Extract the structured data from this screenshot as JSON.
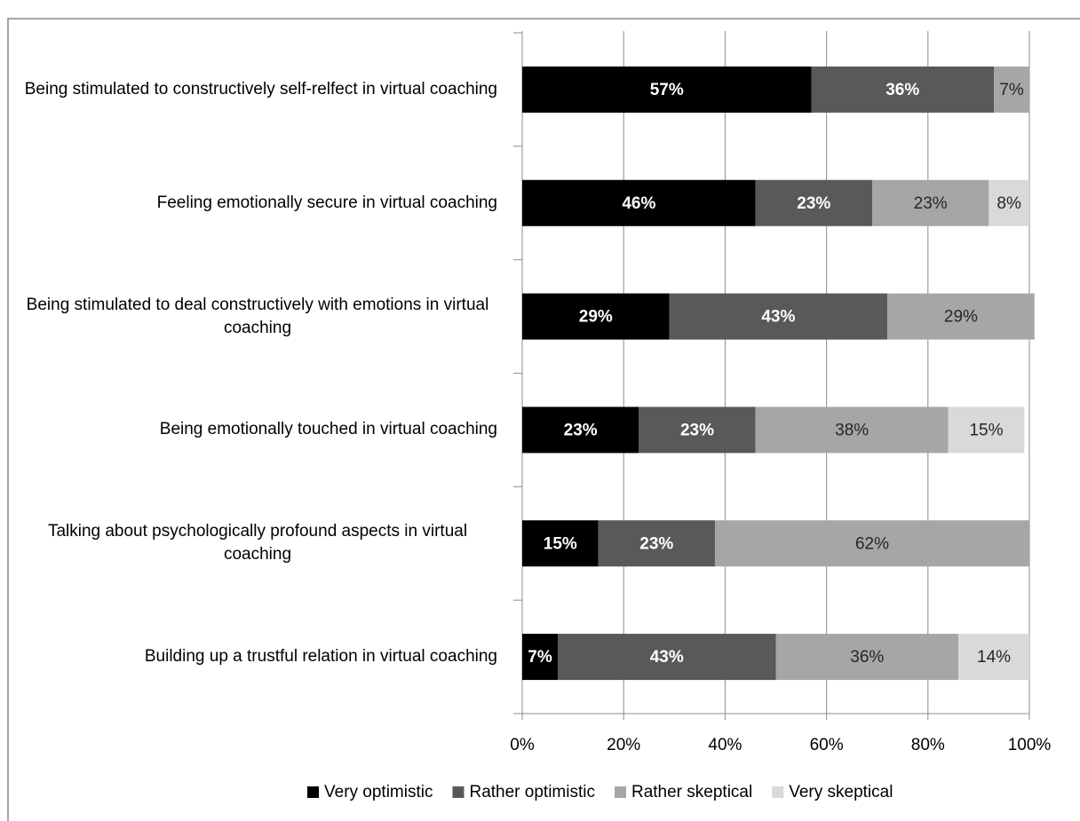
{
  "chart_data": {
    "type": "stacked-bar-horizontal",
    "categories": [
      "Being stimulated to constructively self-relfect in virtual coaching",
      "Feeling emotionally secure in virtual coaching",
      "Being stimulated to deal constructively with emotions in virtual coaching",
      "Being emotionally touched in virtual coaching",
      "Talking about psychologically profound aspects in virtual coaching",
      "Building up a trustful relation in virtual coaching"
    ],
    "series": [
      {
        "name": "Very optimistic",
        "color": "#000000",
        "label_color": "#ffffff",
        "values": [
          57,
          46,
          29,
          23,
          15,
          7
        ],
        "value_labels": [
          "57%",
          "46%",
          "29%",
          "23%",
          "15%",
          "7%"
        ]
      },
      {
        "name": "Rather optimistic",
        "color": "#595959",
        "label_color": "#ffffff",
        "values": [
          36,
          23,
          43,
          23,
          23,
          43
        ],
        "value_labels": [
          "36%",
          "23%",
          "43%",
          "23%",
          "23%",
          "43%"
        ]
      },
      {
        "name": "Rather skeptical",
        "color": "#a6a6a6",
        "label_color": "#262626",
        "values": [
          7,
          23,
          29,
          38,
          62,
          36
        ],
        "value_labels": [
          "7%",
          "23%",
          "29%",
          "38%",
          "62%",
          "36%"
        ]
      },
      {
        "name": "Very skeptical",
        "color": "#d9d9d9",
        "label_color": "#262626",
        "values": [
          null,
          8,
          null,
          15,
          null,
          14
        ],
        "value_labels": [
          null,
          "8%",
          null,
          "15%",
          null,
          "14%"
        ]
      }
    ],
    "xlim": [
      0,
      100
    ],
    "xticks": [
      {
        "value": 0,
        "label": "0%"
      },
      {
        "value": 20,
        "label": "20%"
      },
      {
        "value": 40,
        "label": "40%"
      },
      {
        "value": 60,
        "label": "60%"
      },
      {
        "value": 80,
        "label": "80%"
      },
      {
        "value": 100,
        "label": "100%"
      }
    ],
    "grid": true,
    "legend": "bottom"
  }
}
